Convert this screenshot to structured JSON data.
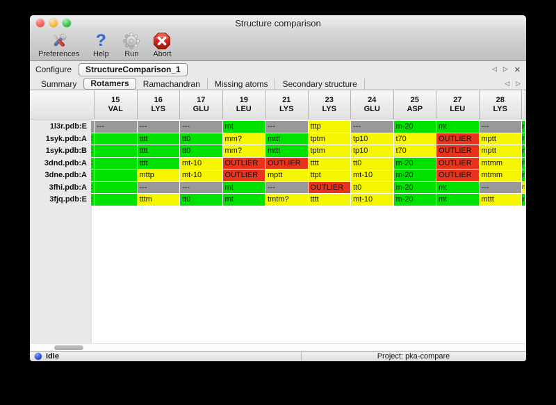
{
  "window": {
    "title": "Structure comparison"
  },
  "toolbar": {
    "items": [
      {
        "label": "Preferences",
        "icon": "tools-icon"
      },
      {
        "label": "Help",
        "icon": "question-mark-icon"
      },
      {
        "label": "Run",
        "icon": "gear-icon"
      },
      {
        "label": "Abort",
        "icon": "stop-x-icon"
      }
    ]
  },
  "configure": {
    "label": "Configure",
    "tab_label": "StructureComparison_1"
  },
  "tabs": {
    "items": [
      "Summary",
      "Rotamers",
      "Ramachandran",
      "Missing atoms",
      "Secondary structure"
    ],
    "selected": "Rotamers"
  },
  "glyphs": {
    "nav_left": "◁",
    "nav_right": "▷",
    "close": "✕"
  },
  "colors": {
    "green": "#00e100",
    "yellow": "#f6f600",
    "red": "#e8341c",
    "gray": "#999999"
  },
  "table": {
    "columns": [
      {
        "num": "15",
        "res": "VAL"
      },
      {
        "num": "16",
        "res": "LYS"
      },
      {
        "num": "17",
        "res": "GLU"
      },
      {
        "num": "19",
        "res": "LEU"
      },
      {
        "num": "21",
        "res": "LYS"
      },
      {
        "num": "23",
        "res": "LYS"
      },
      {
        "num": "24",
        "res": "GLU"
      },
      {
        "num": "25",
        "res": "ASP"
      },
      {
        "num": "27",
        "res": "LEU"
      },
      {
        "num": "28",
        "res": "LYS"
      }
    ],
    "rows": [
      {
        "label": "1l3r.pdb:E",
        "clip_left": {
          "t": "",
          "c": "gray"
        },
        "cells": [
          {
            "t": "---",
            "c": "gray"
          },
          {
            "t": "---",
            "c": "gray"
          },
          {
            "t": "---",
            "c": "gray"
          },
          {
            "t": "mt",
            "c": "green"
          },
          {
            "t": "---",
            "c": "gray"
          },
          {
            "t": "tttp",
            "c": "yellow"
          },
          {
            "t": "---",
            "c": "gray"
          },
          {
            "t": "m-20",
            "c": "green"
          },
          {
            "t": "mt",
            "c": "green"
          },
          {
            "t": "---",
            "c": "gray"
          }
        ],
        "clip_right": {
          "t": "m",
          "c": "green"
        }
      },
      {
        "label": "1syk.pdb:A",
        "clip_left": {
          "t": ":",
          "c": "green"
        },
        "cells": [
          {
            "t": "",
            "c": "green"
          },
          {
            "t": "tttt",
            "c": "green"
          },
          {
            "t": "tt0",
            "c": "green"
          },
          {
            "t": "mm?",
            "c": "yellow"
          },
          {
            "t": "mttt",
            "c": "green"
          },
          {
            "t": "tptm",
            "c": "yellow"
          },
          {
            "t": "tp10",
            "c": "yellow"
          },
          {
            "t": "t70",
            "c": "yellow"
          },
          {
            "t": "OUTLIER",
            "c": "red"
          },
          {
            "t": "mptt",
            "c": "yellow"
          }
        ],
        "clip_right": {
          "t": "m",
          "c": "green"
        }
      },
      {
        "label": "1syk.pdb:B",
        "clip_left": {
          "t": ":",
          "c": "green"
        },
        "cells": [
          {
            "t": "",
            "c": "green"
          },
          {
            "t": "tttt",
            "c": "green"
          },
          {
            "t": "tt0",
            "c": "green"
          },
          {
            "t": "mm?",
            "c": "yellow"
          },
          {
            "t": "mttt",
            "c": "green"
          },
          {
            "t": "tptm",
            "c": "yellow"
          },
          {
            "t": "tp10",
            "c": "yellow"
          },
          {
            "t": "t70",
            "c": "yellow"
          },
          {
            "t": "OUTLIER",
            "c": "red"
          },
          {
            "t": "mptt",
            "c": "yellow"
          }
        ],
        "clip_right": {
          "t": "m",
          "c": "green"
        }
      },
      {
        "label": "3dnd.pdb:A",
        "clip_left": {
          "t": ":",
          "c": "green"
        },
        "cells": [
          {
            "t": "",
            "c": "green"
          },
          {
            "t": "tttt",
            "c": "green"
          },
          {
            "t": "mt-10",
            "c": "yellow"
          },
          {
            "t": "OUTLIER",
            "c": "red"
          },
          {
            "t": "OUTLIER",
            "c": "red"
          },
          {
            "t": "tttt",
            "c": "yellow"
          },
          {
            "t": "tt0",
            "c": "yellow"
          },
          {
            "t": "m-20",
            "c": "green"
          },
          {
            "t": "OUTLIER",
            "c": "red"
          },
          {
            "t": "mtmm",
            "c": "yellow"
          }
        ],
        "clip_right": {
          "t": "m",
          "c": "green"
        }
      },
      {
        "label": "3dne.pdb:A",
        "clip_left": {
          "t": ":",
          "c": "green"
        },
        "cells": [
          {
            "t": "",
            "c": "green"
          },
          {
            "t": "mttp",
            "c": "yellow"
          },
          {
            "t": "mt-10",
            "c": "yellow"
          },
          {
            "t": "OUTLIER",
            "c": "red"
          },
          {
            "t": "mptt",
            "c": "yellow"
          },
          {
            "t": "ttpt",
            "c": "yellow"
          },
          {
            "t": "mt-10",
            "c": "yellow"
          },
          {
            "t": "m-20",
            "c": "green"
          },
          {
            "t": "OUTLIER",
            "c": "red"
          },
          {
            "t": "mtmm",
            "c": "yellow"
          }
        ],
        "clip_right": {
          "t": "m",
          "c": "green"
        }
      },
      {
        "label": "3fhi.pdb:A",
        "clip_left": {
          "t": ":",
          "c": "green"
        },
        "cells": [
          {
            "t": "",
            "c": "green"
          },
          {
            "t": "---",
            "c": "gray"
          },
          {
            "t": "---",
            "c": "gray"
          },
          {
            "t": "mt",
            "c": "green"
          },
          {
            "t": "---",
            "c": "gray"
          },
          {
            "t": "OUTLIER",
            "c": "red"
          },
          {
            "t": "tt0",
            "c": "yellow"
          },
          {
            "t": "m-20",
            "c": "green"
          },
          {
            "t": "mt",
            "c": "green"
          },
          {
            "t": "---",
            "c": "gray"
          }
        ],
        "clip_right": {
          "t": "m",
          "c": "yellow"
        }
      },
      {
        "label": "3fjq.pdb:E",
        "clip_left": {
          "t": ":",
          "c": "green"
        },
        "cells": [
          {
            "t": "",
            "c": "green"
          },
          {
            "t": "tttm",
            "c": "yellow"
          },
          {
            "t": "tt0",
            "c": "green"
          },
          {
            "t": "mt",
            "c": "green"
          },
          {
            "t": "tmtm?",
            "c": "yellow"
          },
          {
            "t": "tttt",
            "c": "yellow"
          },
          {
            "t": "mt-10",
            "c": "yellow"
          },
          {
            "t": "m-20",
            "c": "green"
          },
          {
            "t": "mt",
            "c": "green"
          },
          {
            "t": "mttt",
            "c": "yellow"
          }
        ],
        "clip_right": {
          "t": "m",
          "c": "green"
        }
      }
    ]
  },
  "statusbar": {
    "status": "Idle",
    "project": "Project: pka-compare"
  }
}
